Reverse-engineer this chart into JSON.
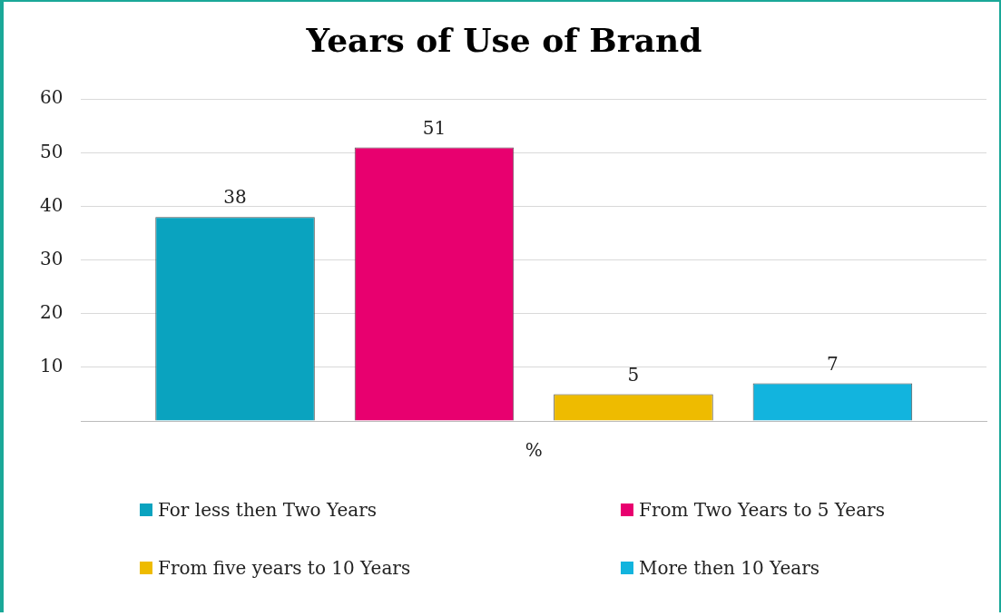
{
  "chart_data": {
    "type": "bar",
    "title": "Years of Use of Brand",
    "categories": [
      "%"
    ],
    "series": [
      {
        "name": "For less then Two Years",
        "color": "#0aa3bf",
        "values": [
          38
        ]
      },
      {
        "name": "From Two Years to 5 Years",
        "color": "#e8006f",
        "values": [
          51
        ]
      },
      {
        "name": "From five years to 10 Years",
        "color": "#eebb00",
        "values": [
          5
        ]
      },
      {
        "name": "More then 10 Years",
        "color": "#12b4de",
        "values": [
          7
        ]
      }
    ],
    "ylim": [
      0,
      60
    ],
    "yticks": [
      {
        "value": 0,
        "label": null
      },
      10,
      20,
      30,
      40,
      50,
      60
    ],
    "grid": "y",
    "legend": "bottom",
    "data_labels": true
  }
}
